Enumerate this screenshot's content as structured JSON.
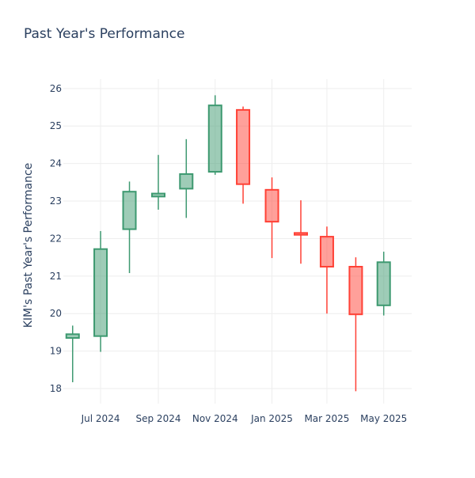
{
  "chart_data": {
    "type": "candlestick",
    "title": "Past Year's Performance",
    "xlabel": "",
    "ylabel": "KIM's Past Year's Performance",
    "ylim": [
      17.6,
      26.25
    ],
    "yticks": [
      18,
      19,
      20,
      21,
      22,
      23,
      24,
      25,
      26
    ],
    "xlim": [
      "2024-05-22",
      "2025-05-31"
    ],
    "xticks": [
      {
        "date": "2024-07-01",
        "label": "Jul 2024"
      },
      {
        "date": "2024-09-01",
        "label": "Sep 2024"
      },
      {
        "date": "2024-11-01",
        "label": "Nov 2024"
      },
      {
        "date": "2025-01-01",
        "label": "Jan 2025"
      },
      {
        "date": "2025-03-01",
        "label": "Mar 2025"
      },
      {
        "date": "2025-05-01",
        "label": "May 2025"
      }
    ],
    "grid": true,
    "colors": {
      "increasing": "#3d9970",
      "decreasing": "#ff4136",
      "grid": "#eeeeee",
      "text": "#2a3f5f"
    },
    "candles": [
      {
        "date": "2024-06-01",
        "open": 19.35,
        "high": 19.68,
        "low": 18.17,
        "close": 19.45
      },
      {
        "date": "2024-07-01",
        "open": 19.4,
        "high": 22.2,
        "low": 18.98,
        "close": 21.72
      },
      {
        "date": "2024-08-01",
        "open": 22.25,
        "high": 23.52,
        "low": 21.08,
        "close": 23.25
      },
      {
        "date": "2024-09-01",
        "open": 23.12,
        "high": 24.23,
        "low": 22.77,
        "close": 23.2
      },
      {
        "date": "2024-10-01",
        "open": 23.33,
        "high": 24.65,
        "low": 22.55,
        "close": 23.72
      },
      {
        "date": "2024-11-01",
        "open": 23.78,
        "high": 25.82,
        "low": 23.7,
        "close": 25.55
      },
      {
        "date": "2024-12-01",
        "open": 25.43,
        "high": 25.52,
        "low": 22.93,
        "close": 23.45
      },
      {
        "date": "2025-01-01",
        "open": 23.3,
        "high": 23.63,
        "low": 21.48,
        "close": 22.45
      },
      {
        "date": "2025-02-01",
        "open": 22.15,
        "high": 23.02,
        "low": 21.33,
        "close": 22.1
      },
      {
        "date": "2025-03-01",
        "open": 22.05,
        "high": 22.32,
        "low": 20.0,
        "close": 21.25
      },
      {
        "date": "2025-04-01",
        "open": 21.25,
        "high": 21.5,
        "low": 17.93,
        "close": 19.98
      },
      {
        "date": "2025-05-01",
        "open": 20.22,
        "high": 21.65,
        "low": 19.95,
        "close": 21.37
      }
    ]
  }
}
